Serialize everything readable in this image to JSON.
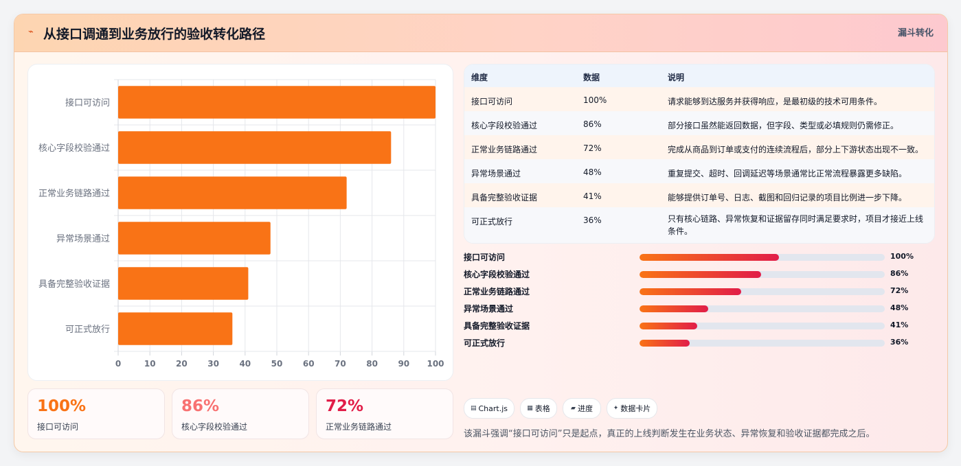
{
  "header": {
    "icon": "chart-line-icon",
    "title": "从接口调通到业务放行的验收转化路径",
    "tag": "漏斗转化"
  },
  "chart_data": {
    "type": "bar",
    "orientation": "horizontal",
    "categories": [
      "接口可访问",
      "核心字段校验通过",
      "正常业务链路通过",
      "异常场景通过",
      "具备完整验收证据",
      "可正式放行"
    ],
    "values": [
      100,
      86,
      72,
      48,
      41,
      36
    ],
    "xlim": [
      0,
      100
    ],
    "xticks": [
      0,
      10,
      20,
      30,
      40,
      50,
      60,
      70,
      80,
      90,
      100
    ],
    "grid": true,
    "bar_color": "#f97316",
    "title": "",
    "xlabel": "",
    "ylabel": ""
  },
  "stats": [
    {
      "value": "100%",
      "label": "接口可访问",
      "color": "#f97316"
    },
    {
      "value": "86%",
      "label": "核心字段校验通过",
      "color": "#f87171"
    },
    {
      "value": "72%",
      "label": "正常业务链路通过",
      "color": "#e11d48"
    }
  ],
  "table": {
    "headers": [
      "维度",
      "数据",
      "说明"
    ],
    "rows": [
      {
        "dim": "接口可访问",
        "data": "100%",
        "desc": "请求能够到达服务并获得响应，是最初级的技术可用条件。"
      },
      {
        "dim": "核心字段校验通过",
        "data": "86%",
        "desc": "部分接口虽然能返回数据，但字段、类型或必填规则仍需修正。"
      },
      {
        "dim": "正常业务链路通过",
        "data": "72%",
        "desc": "完成从商品到订单或支付的连续流程后，部分上下游状态出现不一致。"
      },
      {
        "dim": "异常场景通过",
        "data": "48%",
        "desc": "重复提交、超时、回调延迟等场景通常比正常流程暴露更多缺陷。"
      },
      {
        "dim": "具备完整验收证据",
        "data": "41%",
        "desc": "能够提供订单号、日志、截图和回归记录的项目比例进一步下降。"
      },
      {
        "dim": "可正式放行",
        "data": "36%",
        "desc": "只有核心链路、异常恢复和证据留存同时满足要求时，项目才接近上线条件。"
      }
    ],
    "row_colors": [
      "#fff4ec",
      "#f7f8fb",
      "#fff4ec",
      "#f7f8fb",
      "#fff4ec",
      "#f7f8fb"
    ]
  },
  "progress": [
    {
      "label": "接口可访问",
      "value": "100%",
      "fill": 0.57
    },
    {
      "label": "核心字段校验通过",
      "value": "86%",
      "fill": 0.495
    },
    {
      "label": "正常业务链路通过",
      "value": "72%",
      "fill": 0.415
    },
    {
      "label": "异常场景通过",
      "value": "48%",
      "fill": 0.28
    },
    {
      "label": "具备完整验收证据",
      "value": "41%",
      "fill": 0.235
    },
    {
      "label": "可正式放行",
      "value": "36%",
      "fill": 0.205
    }
  ],
  "chips": [
    {
      "icon": "chart-icon",
      "glyph": "▤",
      "label": "Chart.js"
    },
    {
      "icon": "table-icon",
      "glyph": "▦",
      "label": "表格"
    },
    {
      "icon": "progress-icon",
      "glyph": "▰",
      "label": "进度"
    },
    {
      "icon": "sparkle-icon",
      "glyph": "✦",
      "label": "数据卡片"
    }
  ],
  "footnote": "该漏斗强调“接口可访问”只是起点，真正的上线判断发生在业务状态、异常恢复和验收证据都完成之后。"
}
